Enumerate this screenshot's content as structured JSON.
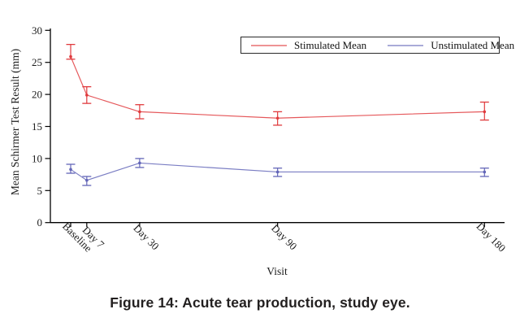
{
  "figure": {
    "caption": "Figure 14: Acute tear production, study eye."
  },
  "chart_data": {
    "type": "line",
    "title": "",
    "xlabel": "Visit",
    "ylabel": "Mean Schirmer Test Result (mm)",
    "ylim": [
      0,
      30
    ],
    "yticks": [
      0,
      5,
      10,
      15,
      20,
      25,
      30
    ],
    "categories": [
      "Baseline",
      "Day 7",
      "Day 30",
      "Day 90",
      "Day 180"
    ],
    "x_days": [
      0,
      7,
      30,
      90,
      180
    ],
    "grid": false,
    "legend_position": "top-center-boxed",
    "error_bars": true,
    "series": [
      {
        "name": "Stimulated Mean",
        "color": "#e03a3d",
        "values": [
          25.9,
          19.9,
          17.3,
          16.3,
          17.3
        ],
        "err_low": [
          25.5,
          18.6,
          16.2,
          15.2,
          16.0
        ],
        "err_high": [
          27.8,
          21.2,
          18.4,
          17.3,
          18.8
        ]
      },
      {
        "name": "Unstimulated Mean",
        "color": "#6366b8",
        "values": [
          8.3,
          6.6,
          9.3,
          7.9,
          7.9
        ],
        "err_low": [
          7.7,
          5.8,
          8.6,
          7.2,
          7.2
        ],
        "err_high": [
          9.1,
          7.2,
          10.0,
          8.5,
          8.5
        ]
      }
    ]
  }
}
